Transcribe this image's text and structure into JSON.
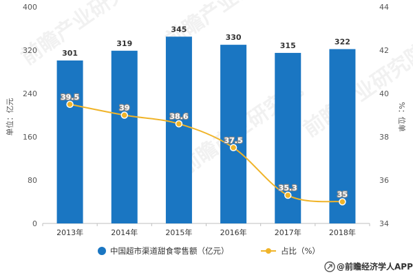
{
  "chart_data": {
    "type": "bar",
    "categories": [
      "2013年",
      "2014年",
      "2015年",
      "2016年",
      "2017年",
      "2018年"
    ],
    "series": [
      {
        "name": "中国超市渠道甜食零售额（亿元）",
        "type": "bar",
        "axis": "left",
        "color": "#1a76c2",
        "values": [
          301,
          319,
          345,
          330,
          315,
          322
        ],
        "labels": [
          "301",
          "319",
          "345",
          "330",
          "315",
          "322"
        ]
      },
      {
        "name": "占比（%）",
        "type": "line",
        "axis": "right",
        "color": "#f0b429",
        "values": [
          39.5,
          39,
          38.6,
          37.5,
          35.3,
          35
        ],
        "labels": [
          "39.5",
          "39",
          "38.6",
          "37.5",
          "35.3",
          "35"
        ]
      }
    ],
    "ylabel": "单位：亿元",
    "y2label": "%：位单",
    "ylim": [
      0,
      400
    ],
    "yticks": [
      "0",
      "80",
      "160",
      "240",
      "320",
      "400"
    ],
    "y2lim": [
      34,
      44
    ],
    "y2ticks": [
      "34",
      "36",
      "38",
      "40",
      "42",
      "44"
    ],
    "grid": false,
    "legend_position": "bottom"
  },
  "brand": {
    "icon": "qianzhan-logo-icon",
    "text": "@前瞻经济学人APP"
  },
  "watermark": {
    "text": "前瞻产业研究院"
  }
}
